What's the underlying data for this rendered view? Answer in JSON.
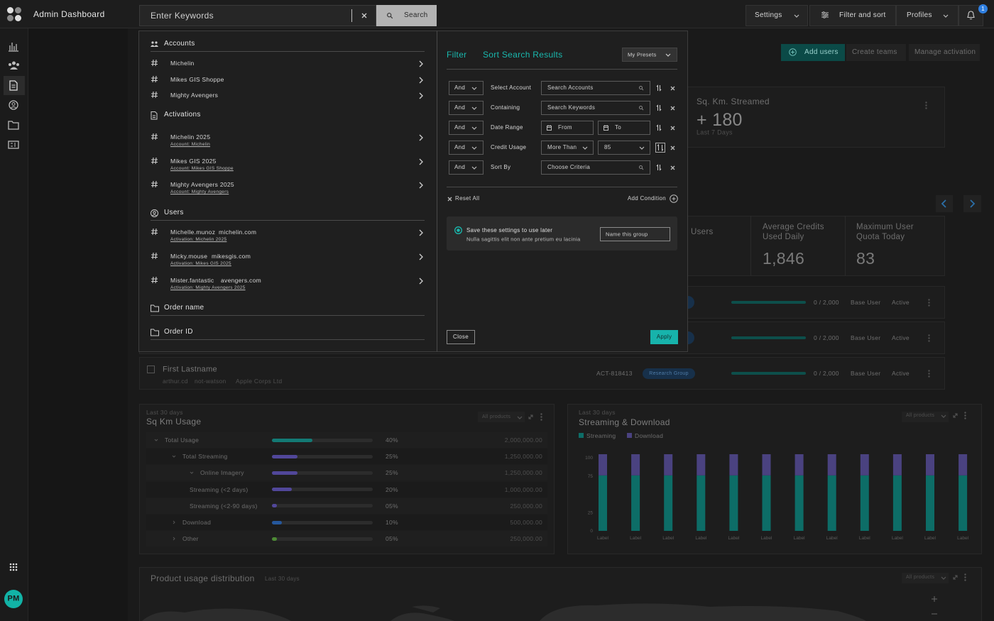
{
  "header": {
    "title": "Admin Dashboard",
    "search_placeholder": "Enter Keywords",
    "search_button": "Search",
    "settings": "Settings",
    "filter_and_sort": "Filter and sort",
    "profiles": "Profiles",
    "notifications": "1"
  },
  "sidebar": {
    "avatar": "PM"
  },
  "search_results": {
    "sections": [
      {
        "title": "Accounts",
        "items": [
          {
            "name": "Michelin"
          },
          {
            "name": "Mikes GIS Shoppe"
          },
          {
            "name": "Mighty Avengers"
          }
        ]
      },
      {
        "title": "Activations",
        "items": [
          {
            "name": "Michelin 2025",
            "link": "Account: Michelin"
          },
          {
            "name": "Mikes GIS 2025",
            "link": "Account: Mikes GIS Shoppe"
          },
          {
            "name": "Mighty Avengers 2025",
            "link": "Account: Mighty Avengers"
          }
        ]
      },
      {
        "title": "Users",
        "items": [
          {
            "name": "Michelle.munoz",
            "domain": "michelin.com",
            "link": "Activation: Michelin 2025"
          },
          {
            "name": "Micky.mouse",
            "domain": "mikesgis.com",
            "link": "Activation: Mikes GIS 2025"
          },
          {
            "name": "Mister.fantastic",
            "domain": "avengers.com",
            "link": "Activation: Mighty Avengers 2025"
          }
        ]
      },
      {
        "title": "Order name",
        "items": []
      },
      {
        "title": "Order ID",
        "items": []
      }
    ]
  },
  "filter_panel": {
    "tab_filter": "Filter",
    "tab_sort": "Sort Search Results",
    "presets": "My Presets",
    "rows": [
      {
        "operator": "And",
        "label": "Select Account",
        "inputs": [
          "Search Accounts"
        ]
      },
      {
        "operator": "And",
        "label": "Containing",
        "inputs": [
          "Search Keywords"
        ]
      },
      {
        "operator": "And",
        "label": "Date Range",
        "inputs": [
          "From",
          "To"
        ]
      },
      {
        "operator": "And",
        "label": "Credit Usage",
        "inputs": [
          "More Than",
          "85"
        ]
      },
      {
        "operator": "And",
        "label": "Sort By",
        "inputs": [
          "Choose Criteria"
        ]
      }
    ],
    "reset": "Reset All",
    "add_condition": "Add Condition",
    "save_title": "Save these settings to use later",
    "save_description": "Nulla sagittis elit non ante pretium eu lacinia",
    "group_placeholder": "Name this group",
    "close": "Close",
    "apply": "Apply"
  },
  "dashboard": {
    "actions": [
      "Add users",
      "Create teams",
      "Manage activation"
    ],
    "card": {
      "title": "Sq. Km. Streamed",
      "value": "+ 180",
      "period": "Last 7 Days"
    },
    "stats": [
      {
        "label": "Users"
      },
      {
        "label": "Average Credits Used Daily",
        "value": "1,846"
      },
      {
        "label": "Maximum User Quota Today",
        "value": "83"
      }
    ],
    "user_rows": [
      {
        "usage": "0 / 2,000",
        "role": "Base User",
        "status": "Active"
      },
      {
        "usage": "0 / 2,000",
        "role": "Base User",
        "status": "Active"
      },
      {
        "name": "First Lastname",
        "username": "arthur.cd",
        "handle": "not-watson",
        "company": "Apple Corps Ltd",
        "activation": "ACT-818413",
        "group": "Research Group",
        "usage": "0 / 2,000",
        "role": "Base User",
        "status": "Active"
      }
    ]
  },
  "sq_km_usage": {
    "period": "Last 30 days",
    "title": "Sq Km Usage",
    "filter": "All products",
    "rows": [
      {
        "name": "Total Usage",
        "pct": 40,
        "pct_label": "40%",
        "amount": "2,000,000.00",
        "color": "#137a75"
      },
      {
        "name": "Total Streaming",
        "pct": 25,
        "pct_label": "25%",
        "amount": "1,250,000.00",
        "color": "#51479a"
      },
      {
        "name": "Online Imagery",
        "pct": 25,
        "pct_label": "25%",
        "amount": "1,250,000.00",
        "color": "#51479a"
      },
      {
        "name": "Streaming (<2 days)",
        "pct": 20,
        "pct_label": "20%",
        "amount": "1,000,000.00",
        "color": "#51479a"
      },
      {
        "name": "Streaming (<2-90 days)",
        "pct": 5,
        "pct_label": "05%",
        "amount": "250,000.00",
        "color": "#51479a"
      },
      {
        "name": "Download",
        "pct": 10,
        "pct_label": "10%",
        "amount": "500,000.00",
        "color": "#25579c"
      },
      {
        "name": "Other",
        "pct": 5,
        "pct_label": "05%",
        "amount": "250,000.00",
        "color": "#4d8a35"
      }
    ]
  },
  "streaming_chart": {
    "type": "bar",
    "period": "Last 30 days",
    "title": "Streaming & Download",
    "filter": "All products",
    "stacked": true,
    "categories": [
      "Label",
      "Label",
      "Label",
      "Label",
      "Label",
      "Label",
      "Label",
      "Label",
      "Label",
      "Label",
      "Label",
      "Label"
    ],
    "series": [
      {
        "name": "Streaming",
        "color": "#0d6d67",
        "values": [
          76,
          76,
          76,
          76,
          76,
          76,
          76,
          76,
          76,
          76,
          76,
          76
        ]
      },
      {
        "name": "Download",
        "color": "#4a4280",
        "values": [
          29,
          29,
          29,
          29,
          29,
          29,
          29,
          29,
          29,
          29,
          29,
          29
        ]
      }
    ],
    "ylim": [
      0,
      105
    ],
    "yticks": [
      0,
      25,
      75,
      100
    ]
  },
  "distribution": {
    "title": "Product usage distribution",
    "period": "Last 30 days",
    "filter": "All products"
  }
}
